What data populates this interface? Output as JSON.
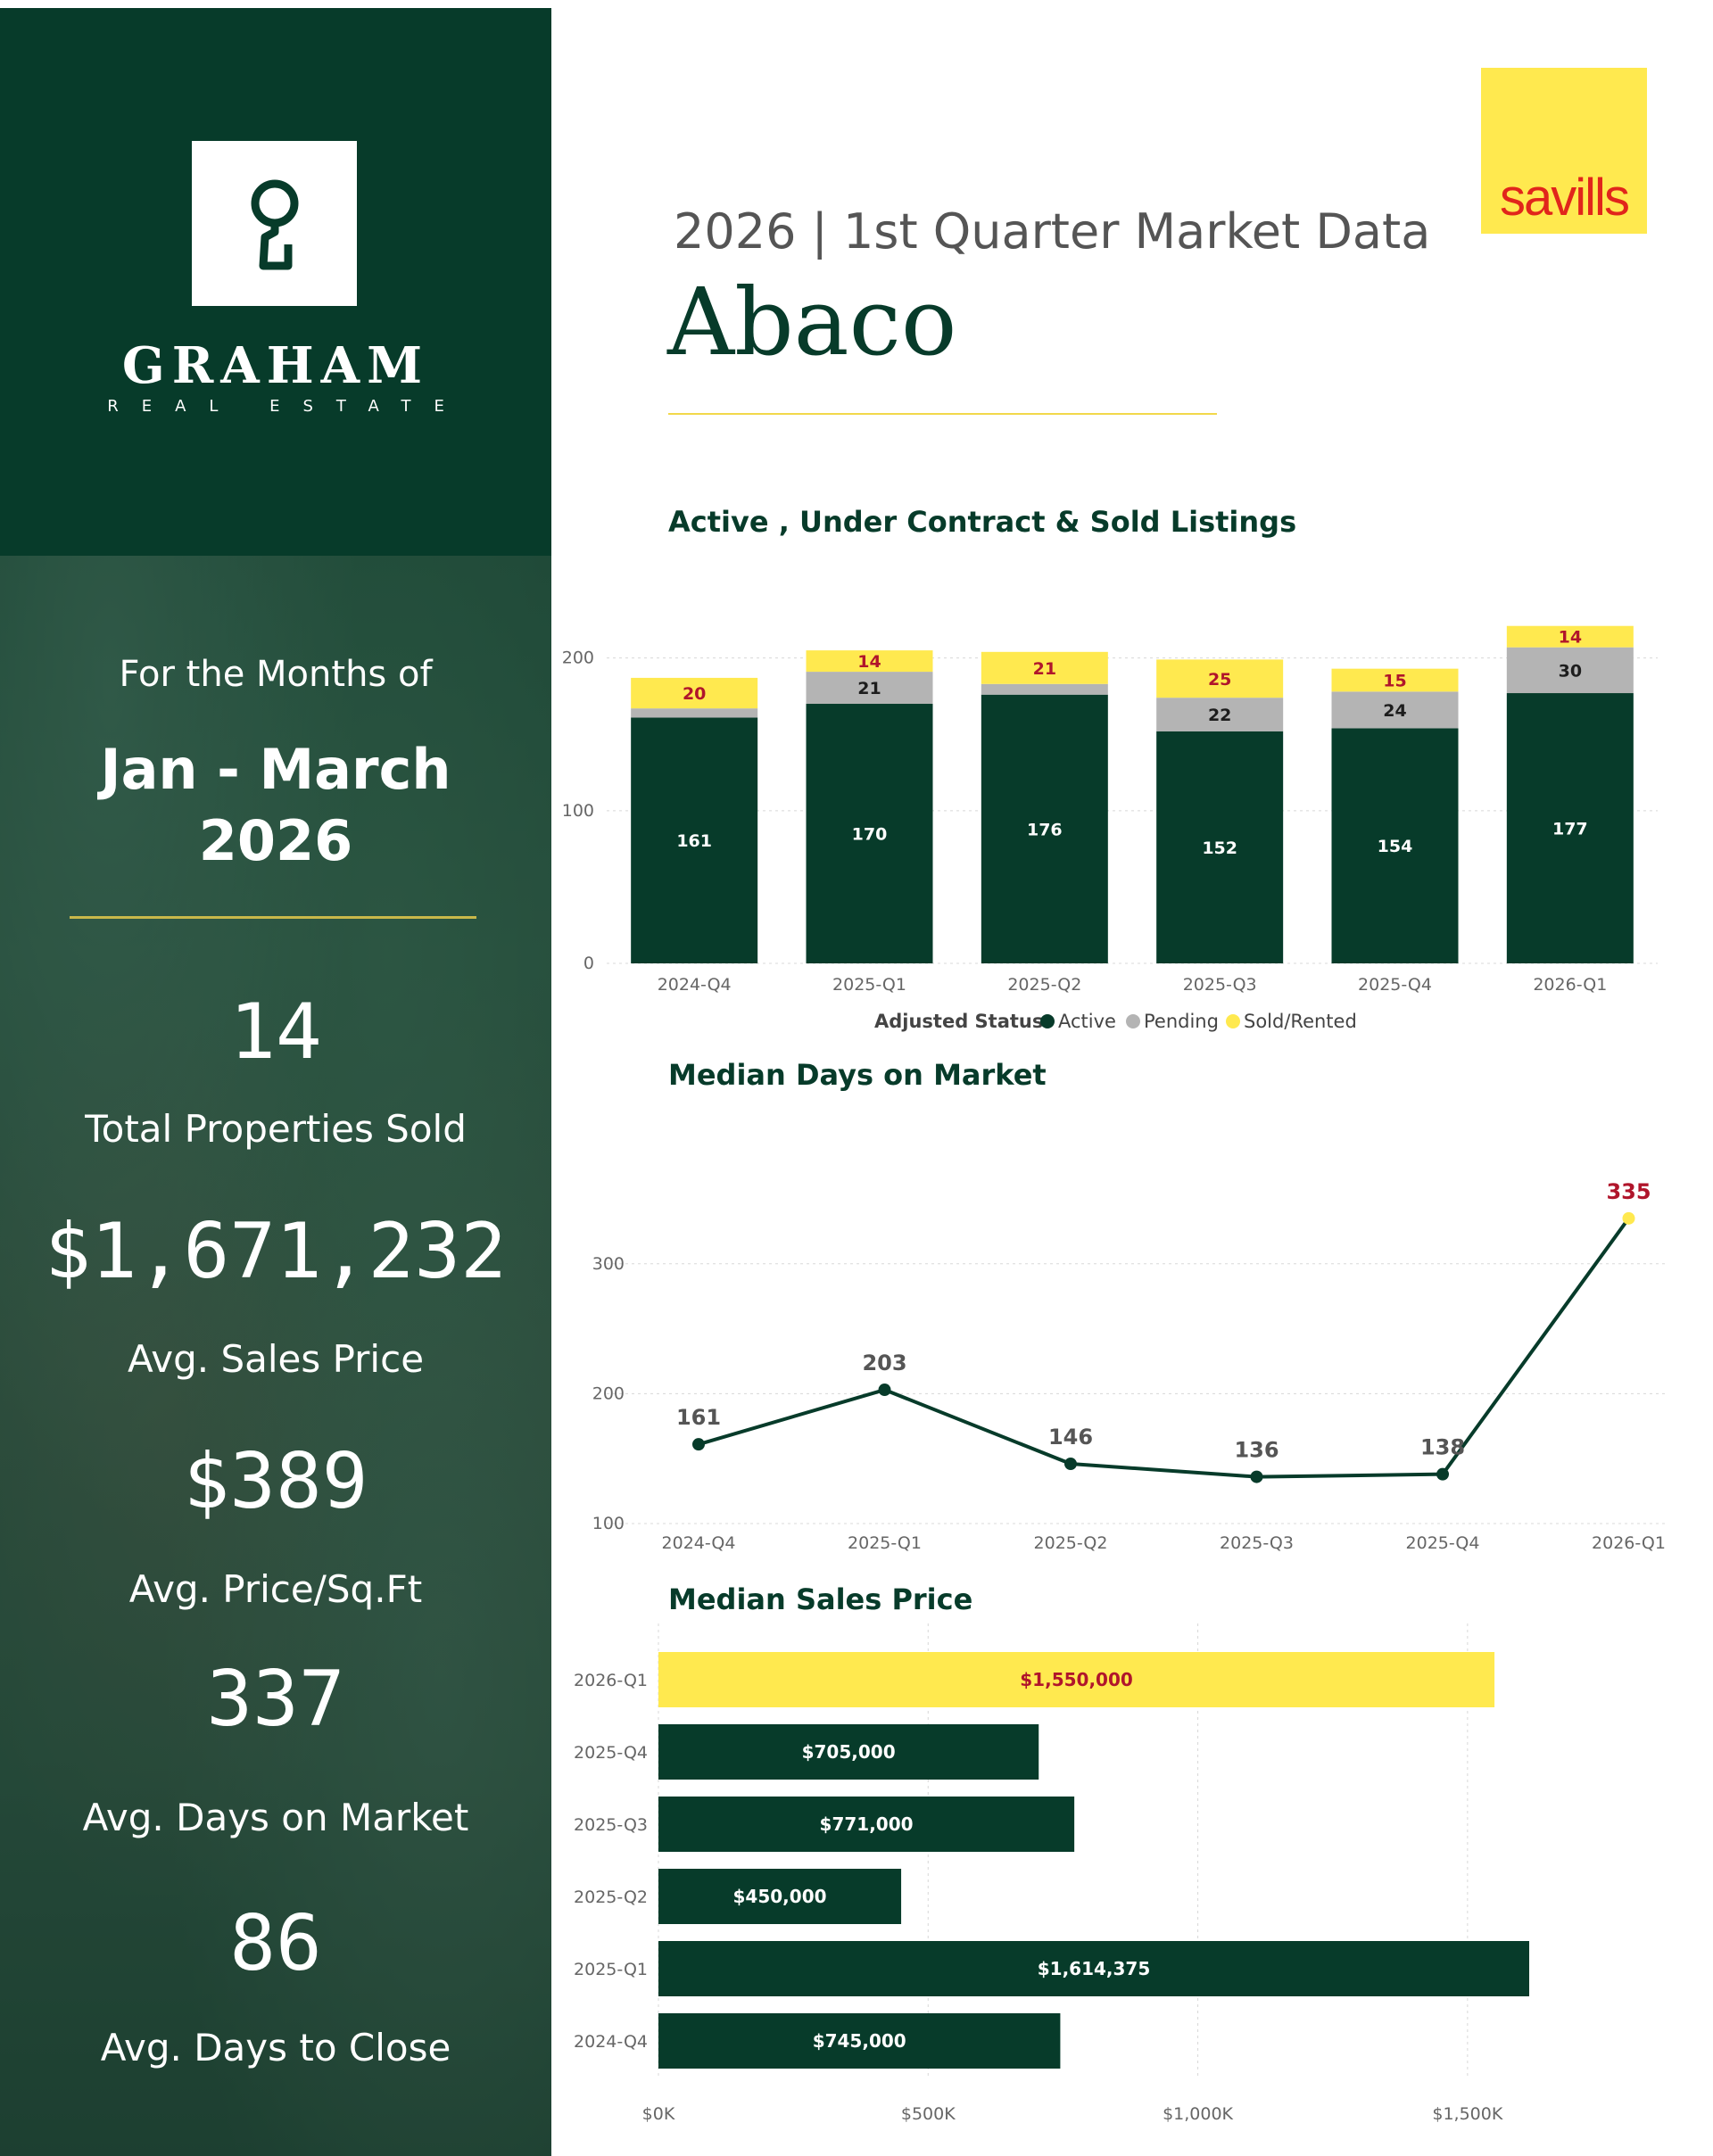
{
  "brand": {
    "name": "GRAHAM",
    "sub": "REAL ESTATE",
    "partner": "savills"
  },
  "header": {
    "subtitle": "2026 | 1st  Quarter Market Data",
    "title": "Abaco"
  },
  "summary": {
    "months_label": "For the Months of",
    "months_range": "Jan - March 2026",
    "kpis": [
      {
        "value": "14",
        "label": "Total Properties Sold"
      },
      {
        "value": "$1,671,232",
        "label": "Avg. Sales Price"
      },
      {
        "value": "$389",
        "label": "Avg. Price/Sq.Ft"
      },
      {
        "value": "337",
        "label": "Avg. Days on Market"
      },
      {
        "value": "86",
        "label": "Avg. Days to Close"
      }
    ]
  },
  "colors": {
    "dark_green": "#073b2a",
    "pending_gray": "#b4b4b4",
    "sold_yellow": "#ffe94f",
    "label_red": "#b0152b"
  },
  "chart_data": [
    {
      "type": "bar",
      "stacked": true,
      "title": "Active , Under Contract & Sold Listings",
      "categories": [
        "2024-Q4",
        "2025-Q1",
        "2025-Q2",
        "2025-Q3",
        "2025-Q4",
        "2026-Q1"
      ],
      "series": [
        {
          "name": "Active",
          "values": [
            161,
            170,
            176,
            152,
            154,
            177
          ],
          "labels": [
            "161",
            "170",
            "176",
            "152",
            "154",
            "177"
          ]
        },
        {
          "name": "Pending",
          "values": [
            6,
            21,
            7,
            22,
            24,
            30
          ],
          "labels": [
            "",
            "21",
            "",
            "22",
            "24",
            "30"
          ]
        },
        {
          "name": "Sold/Rented",
          "values": [
            20,
            14,
            21,
            25,
            15,
            14
          ],
          "labels": [
            "20",
            "14",
            "21",
            "25",
            "15",
            "14"
          ]
        }
      ],
      "legend_title": "Adjusted Status",
      "legend_position": "bottom",
      "ylim": [
        0,
        222
      ],
      "yticks": [
        "0",
        "100",
        "200"
      ],
      "grid": true
    },
    {
      "type": "line",
      "title": "Median Days on Market",
      "categories": [
        "2024-Q4",
        "2025-Q1",
        "2025-Q2",
        "2025-Q3",
        "2025-Q4",
        "2026-Q1"
      ],
      "values": [
        161,
        203,
        146,
        136,
        138,
        335
      ],
      "labels": [
        "161",
        "203",
        "146",
        "136",
        "138",
        "335"
      ],
      "ylim": [
        100,
        350
      ],
      "yticks": [
        "100",
        "200",
        "300"
      ],
      "grid": true
    },
    {
      "type": "bar",
      "orientation": "horizontal",
      "title": "Median Sales Price",
      "categories": [
        "2026-Q1",
        "2025-Q4",
        "2025-Q3",
        "2025-Q2",
        "2025-Q1",
        "2024-Q4"
      ],
      "values": [
        1550000,
        705000,
        771000,
        450000,
        1614375,
        745000
      ],
      "labels": [
        "$1,550,000",
        "$705,000",
        "$771,000",
        "$450,000",
        "$1,614,375",
        "$745,000"
      ],
      "xlim": [
        0,
        1700000
      ],
      "xticks": [
        {
          "value": 0,
          "label": "$0K"
        },
        {
          "value": 500000,
          "label": "$500K"
        },
        {
          "value": 1000000,
          "label": "$1,000K"
        },
        {
          "value": 1500000,
          "label": "$1,500K"
        }
      ],
      "grid": true
    }
  ]
}
